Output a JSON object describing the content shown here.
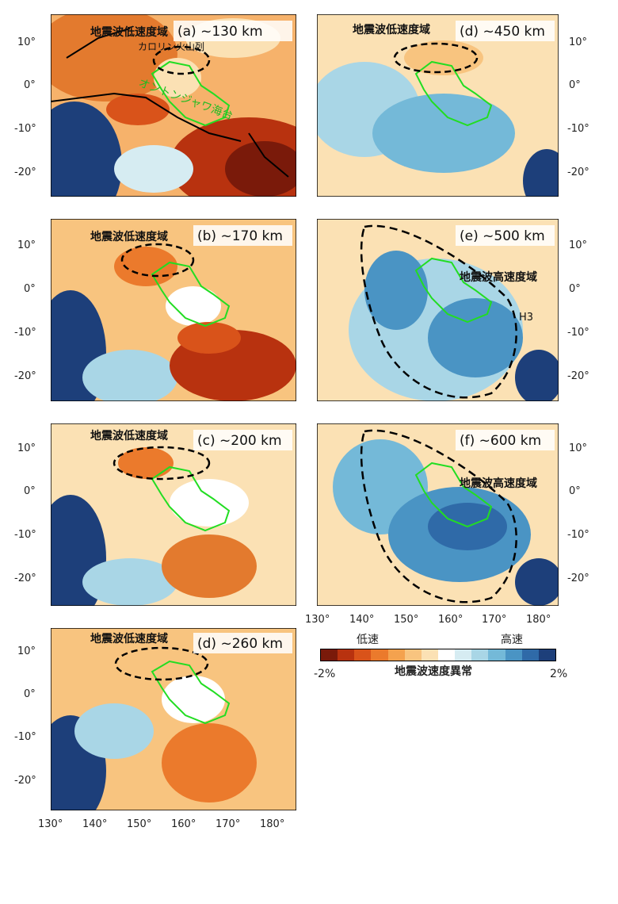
{
  "panels": [
    {
      "id": "a",
      "title": "(a) ~130 km",
      "low_label": "地震波低速度域",
      "extra": [
        "カロリン火山列",
        "オントンジャワ海台"
      ]
    },
    {
      "id": "b",
      "title": "(b) ~170 km",
      "low_label": "地震波低速度域"
    },
    {
      "id": "c",
      "title": "(c) ~200 km",
      "low_label": "地震波低速度域"
    },
    {
      "id": "d1",
      "title": "(d) ~260 km",
      "low_label": "地震波低速度域"
    },
    {
      "id": "d2",
      "title": "(d) ~450 km",
      "low_label": "地震波低速度域"
    },
    {
      "id": "e",
      "title": "(e) ~500 km",
      "high_label": "地震波高速度域",
      "extra": [
        "H3"
      ]
    },
    {
      "id": "f",
      "title": "(f) ~600 km",
      "high_label": "地震波高速度域"
    }
  ],
  "lat_ticks": [
    "10°",
    "0°",
    "-10°",
    "-20°"
  ],
  "lon_ticks": [
    "130°",
    "140°",
    "150°",
    "160°",
    "170°",
    "180°"
  ],
  "legend": {
    "slow_label": "低速",
    "fast_label": "高速",
    "title": "地震波速度異常",
    "min": "-2%",
    "max": "2%",
    "colors": [
      "#7a1a0a",
      "#b8320f",
      "#d9531a",
      "#eb7a2c",
      "#f4a24e",
      "#f8c47f",
      "#fbe1b4",
      "#ffffff",
      "#d6ecf2",
      "#a9d6e6",
      "#74b9d8",
      "#4a94c4",
      "#2f6aa8",
      "#1d3f7a"
    ]
  },
  "outline_color": "#22dd22"
}
